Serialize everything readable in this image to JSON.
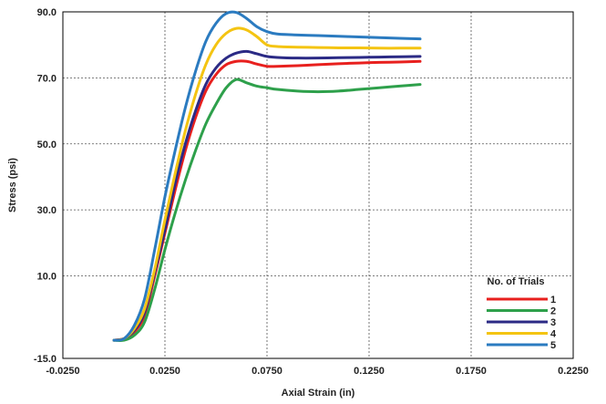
{
  "chart_data": {
    "type": "line",
    "title": "",
    "xlabel": "Axial Strain (in)",
    "ylabel": "Stress (psi)",
    "xlim": [
      -0.025,
      0.225
    ],
    "ylim": [
      -15.0,
      90.0
    ],
    "x_ticks": [
      "-0.0250",
      "0.0250",
      "0.0750",
      "0.1250",
      "0.1750",
      "0.2250"
    ],
    "y_ticks": [
      "-15.0",
      "10.0",
      "30.0",
      "50.0",
      "70.0",
      "90.0"
    ],
    "x_tick_values": [
      -0.025,
      0.025,
      0.075,
      0.125,
      0.175,
      0.225
    ],
    "y_tick_values": [
      -15,
      10,
      30,
      50,
      70,
      90
    ],
    "grid": "dashed",
    "legend": {
      "title": "No. of Trials",
      "position": "bottom-right"
    },
    "series": [
      {
        "name": "1",
        "color": "#e8201e",
        "x": [
          0,
          0.005,
          0.01,
          0.015,
          0.02,
          0.025,
          0.03,
          0.035,
          0.04,
          0.045,
          0.05,
          0.055,
          0.06,
          0.065,
          0.07,
          0.075,
          0.08,
          0.09,
          0.1,
          0.11,
          0.12,
          0.13,
          0.14,
          0.15
        ],
        "y": [
          -9.5,
          -9,
          -7,
          -2,
          10,
          23,
          36,
          48,
          58,
          66,
          71,
          74,
          75,
          75,
          74.2,
          73.5,
          73.5,
          73.7,
          74,
          74.3,
          74.5,
          74.7,
          74.8,
          75
        ]
      },
      {
        "name": "2",
        "color": "#2ea04b",
        "x": [
          0,
          0.005,
          0.01,
          0.015,
          0.02,
          0.025,
          0.03,
          0.035,
          0.04,
          0.045,
          0.05,
          0.055,
          0.06,
          0.065,
          0.07,
          0.075,
          0.08,
          0.09,
          0.1,
          0.11,
          0.12,
          0.13,
          0.14,
          0.15
        ],
        "y": [
          -9.5,
          -9.5,
          -8,
          -4,
          6,
          18,
          29,
          39,
          48,
          56,
          62,
          67,
          69.5,
          68.5,
          67.5,
          67,
          66.5,
          66,
          65.8,
          66,
          66.5,
          67,
          67.5,
          68
        ]
      },
      {
        "name": "3",
        "color": "#2b2a85",
        "x": [
          0,
          0.005,
          0.01,
          0.015,
          0.02,
          0.025,
          0.03,
          0.035,
          0.04,
          0.045,
          0.05,
          0.055,
          0.06,
          0.065,
          0.07,
          0.075,
          0.08,
          0.09,
          0.1,
          0.11,
          0.12,
          0.13,
          0.14,
          0.15
        ],
        "y": [
          -9.5,
          -9,
          -6.5,
          -1,
          11,
          24,
          38,
          50,
          60,
          68,
          73,
          76,
          77.5,
          78,
          77.3,
          76.5,
          76.2,
          76,
          76,
          76.1,
          76.2,
          76.3,
          76.4,
          76.5
        ]
      },
      {
        "name": "4",
        "color": "#f4c412",
        "x": [
          0,
          0.005,
          0.01,
          0.015,
          0.02,
          0.025,
          0.03,
          0.035,
          0.04,
          0.045,
          0.05,
          0.055,
          0.06,
          0.065,
          0.07,
          0.075,
          0.08,
          0.09,
          0.1,
          0.11,
          0.12,
          0.13,
          0.14,
          0.15
        ],
        "y": [
          -9.5,
          -9,
          -6,
          0,
          12,
          27,
          41,
          54,
          65,
          74,
          80,
          83.5,
          85,
          84.5,
          82.5,
          80,
          79.5,
          79.3,
          79.2,
          79.1,
          79.1,
          79,
          79,
          79
        ]
      },
      {
        "name": "5",
        "color": "#2b7bc0",
        "x": [
          0,
          0.005,
          0.01,
          0.015,
          0.02,
          0.025,
          0.03,
          0.035,
          0.04,
          0.045,
          0.05,
          0.055,
          0.06,
          0.065,
          0.07,
          0.075,
          0.08,
          0.09,
          0.1,
          0.11,
          0.12,
          0.13,
          0.14,
          0.15
        ],
        "y": [
          -9.5,
          -9,
          -5,
          3,
          18,
          34,
          48,
          61,
          72,
          81,
          86.5,
          89.5,
          89.8,
          88,
          85.5,
          84,
          83.3,
          83,
          82.8,
          82.6,
          82.4,
          82.2,
          82,
          81.8
        ]
      }
    ]
  }
}
